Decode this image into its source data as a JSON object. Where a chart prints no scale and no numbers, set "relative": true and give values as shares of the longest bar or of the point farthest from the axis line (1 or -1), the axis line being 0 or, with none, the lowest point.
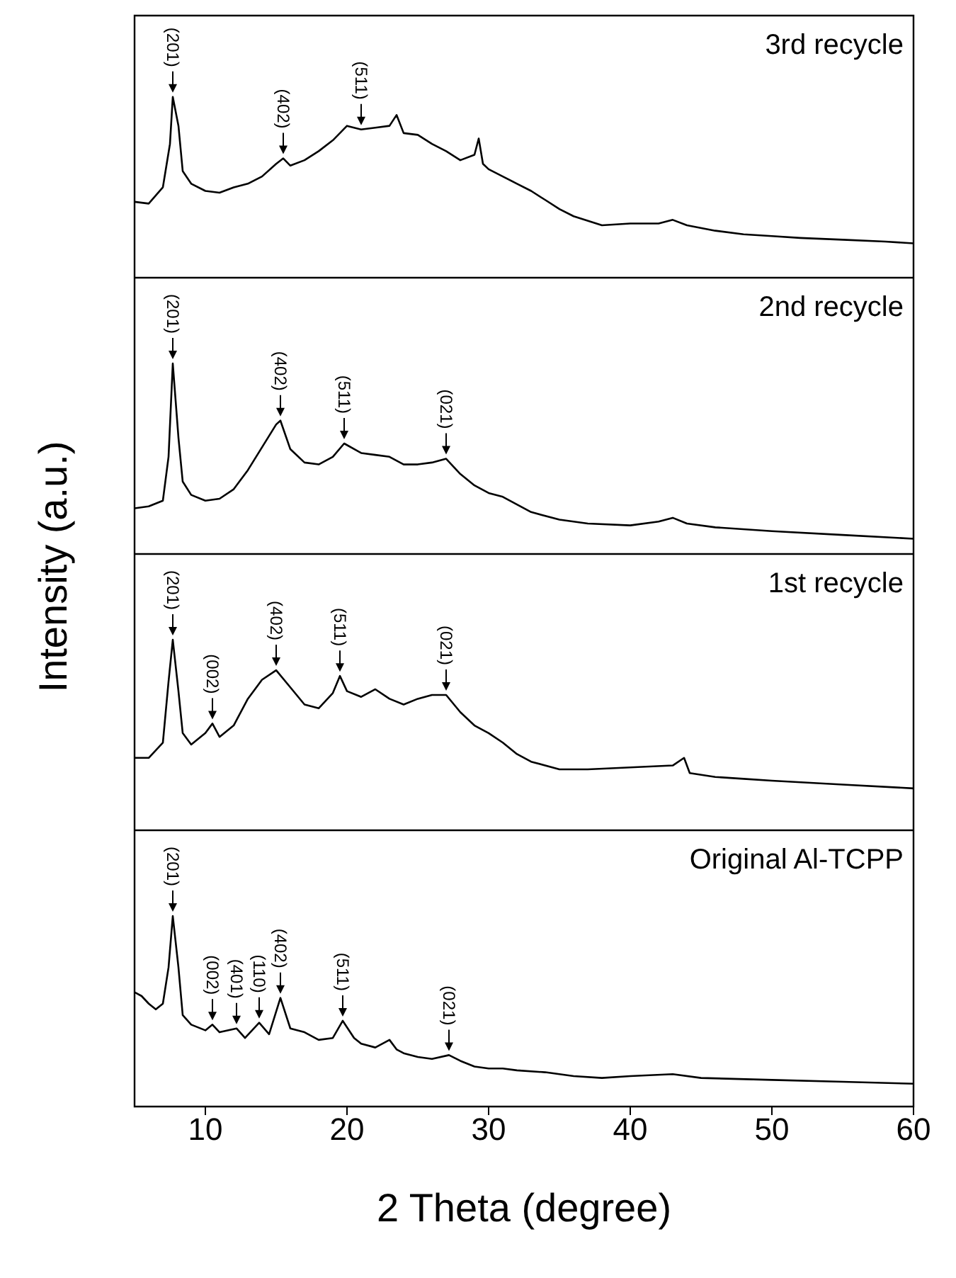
{
  "chart_data": [
    {
      "type": "line",
      "title": "3rd recycle",
      "relative": true,
      "color": "#000000",
      "xlim": [
        5,
        60
      ],
      "xticks": [
        10,
        20,
        30,
        40,
        50,
        60
      ],
      "tick_labels": false,
      "ylabel": "Intensity (a.u.)",
      "x": [
        5,
        6,
        7,
        7.5,
        7.7,
        8.1,
        8.4,
        9,
        10,
        11,
        12,
        13,
        14,
        15,
        15.5,
        16,
        17,
        18,
        19,
        20,
        21,
        22,
        23,
        23.5,
        24,
        25,
        26,
        27,
        28,
        29,
        29.3,
        29.6,
        30,
        31,
        32,
        33,
        34,
        35,
        36,
        38,
        40,
        42,
        43,
        44,
        46,
        48,
        50,
        52,
        55,
        58,
        60
      ],
      "values": [
        0.42,
        0.41,
        0.5,
        0.74,
        1.0,
        0.84,
        0.59,
        0.52,
        0.48,
        0.47,
        0.5,
        0.52,
        0.56,
        0.63,
        0.66,
        0.62,
        0.65,
        0.7,
        0.76,
        0.84,
        0.82,
        0.83,
        0.84,
        0.9,
        0.8,
        0.79,
        0.74,
        0.7,
        0.65,
        0.68,
        0.77,
        0.63,
        0.6,
        0.56,
        0.52,
        0.48,
        0.43,
        0.38,
        0.34,
        0.29,
        0.3,
        0.3,
        0.32,
        0.29,
        0.26,
        0.24,
        0.23,
        0.22,
        0.21,
        0.2,
        0.19
      ],
      "annotations": [
        {
          "text": "(201)",
          "x": 7.7,
          "y": 1.0
        },
        {
          "text": "(402)",
          "x": 15.5,
          "y": 0.66
        },
        {
          "text": "(511)",
          "x": 21,
          "y": 0.82
        }
      ]
    },
    {
      "type": "line",
      "title": "2nd recycle",
      "relative": true,
      "color": "#000000",
      "xlim": [
        5,
        60
      ],
      "xticks": [
        10,
        20,
        30,
        40,
        50,
        60
      ],
      "tick_labels": false,
      "x": [
        5,
        6,
        7,
        7.4,
        7.7,
        8.1,
        8.4,
        9,
        10,
        11,
        12,
        13,
        14,
        15,
        15.3,
        16,
        17,
        18,
        19,
        19.8,
        21,
        22,
        23,
        24,
        25,
        26,
        27,
        28,
        29,
        30,
        31,
        32,
        33,
        35,
        37,
        40,
        42,
        43,
        44,
        46,
        50,
        55,
        60
      ],
      "values": [
        0.24,
        0.25,
        0.28,
        0.51,
        1.0,
        0.61,
        0.38,
        0.31,
        0.28,
        0.29,
        0.34,
        0.44,
        0.56,
        0.68,
        0.7,
        0.55,
        0.48,
        0.47,
        0.51,
        0.58,
        0.53,
        0.52,
        0.51,
        0.47,
        0.47,
        0.48,
        0.5,
        0.42,
        0.36,
        0.32,
        0.3,
        0.26,
        0.22,
        0.18,
        0.16,
        0.15,
        0.17,
        0.19,
        0.16,
        0.14,
        0.12,
        0.1,
        0.08
      ],
      "annotations": [
        {
          "text": "(201)",
          "x": 7.7,
          "y": 1.0
        },
        {
          "text": "(402)",
          "x": 15.3,
          "y": 0.7
        },
        {
          "text": "(511)",
          "x": 19.8,
          "y": 0.58
        },
        {
          "text": "(021)",
          "x": 27,
          "y": 0.5
        }
      ]
    },
    {
      "type": "line",
      "title": "1st recycle",
      "relative": true,
      "color": "#000000",
      "xlim": [
        5,
        60
      ],
      "xticks": [
        10,
        20,
        30,
        40,
        50,
        60
      ],
      "tick_labels": false,
      "x": [
        5,
        6,
        7,
        7.4,
        7.7,
        8.1,
        8.4,
        9,
        10,
        10.5,
        11,
        12,
        13,
        14,
        15,
        16,
        17,
        18,
        19,
        19.5,
        20,
        21,
        22,
        23,
        24,
        25,
        26,
        27,
        28,
        29,
        30,
        31,
        32,
        33,
        35,
        37,
        40,
        43,
        43.8,
        44.2,
        46,
        48,
        50,
        55,
        60
      ],
      "values": [
        0.38,
        0.38,
        0.46,
        0.78,
        1.0,
        0.73,
        0.51,
        0.45,
        0.51,
        0.56,
        0.49,
        0.55,
        0.69,
        0.79,
        0.84,
        0.75,
        0.66,
        0.64,
        0.72,
        0.81,
        0.73,
        0.7,
        0.74,
        0.69,
        0.66,
        0.69,
        0.71,
        0.71,
        0.62,
        0.55,
        0.51,
        0.46,
        0.4,
        0.36,
        0.32,
        0.32,
        0.33,
        0.34,
        0.38,
        0.3,
        0.28,
        0.27,
        0.26,
        0.24,
        0.22
      ],
      "annotations": [
        {
          "text": "(201)",
          "x": 7.7,
          "y": 1.0
        },
        {
          "text": "(002)",
          "x": 10.5,
          "y": 0.56
        },
        {
          "text": "(402)",
          "x": 15,
          "y": 0.84
        },
        {
          "text": "(511)",
          "x": 19.5,
          "y": 0.81
        },
        {
          "text": "(021)",
          "x": 27,
          "y": 0.71
        }
      ]
    },
    {
      "type": "line",
      "title": "Original Al-TCPP",
      "relative": true,
      "color": "#000000",
      "xlim": [
        5,
        60
      ],
      "xticks": [
        10,
        20,
        30,
        40,
        50,
        60
      ],
      "tick_labels": "x",
      "xlabel": "2 Theta (degree)",
      "x": [
        5,
        5.5,
        6,
        6.5,
        7,
        7.4,
        7.7,
        8.1,
        8.4,
        9,
        10,
        10.5,
        11,
        12.2,
        12.8,
        13.8,
        14.5,
        15.3,
        16,
        17,
        18,
        19,
        19.7,
        20.5,
        21,
        22,
        23,
        23.5,
        24,
        25,
        26,
        27.2,
        28,
        29,
        30,
        31,
        32,
        34,
        36,
        38,
        40,
        43,
        45,
        50,
        55,
        60
      ],
      "values": [
        0.6,
        0.58,
        0.54,
        0.51,
        0.54,
        0.73,
        1.0,
        0.73,
        0.48,
        0.43,
        0.4,
        0.43,
        0.39,
        0.41,
        0.36,
        0.44,
        0.38,
        0.57,
        0.41,
        0.39,
        0.35,
        0.36,
        0.45,
        0.36,
        0.33,
        0.31,
        0.35,
        0.3,
        0.28,
        0.26,
        0.25,
        0.27,
        0.24,
        0.21,
        0.2,
        0.2,
        0.19,
        0.18,
        0.16,
        0.15,
        0.16,
        0.17,
        0.15,
        0.14,
        0.13,
        0.12
      ],
      "annotations": [
        {
          "text": "(201)",
          "x": 7.7,
          "y": 1.0
        },
        {
          "text": "(002)",
          "x": 10.5,
          "y": 0.43
        },
        {
          "text": "(401)",
          "x": 12.2,
          "y": 0.41
        },
        {
          "text": "(110)",
          "x": 13.8,
          "y": 0.44
        },
        {
          "text": "(402)",
          "x": 15.3,
          "y": 0.57
        },
        {
          "text": "(511)",
          "x": 19.7,
          "y": 0.45
        },
        {
          "text": "(021)",
          "x": 27.2,
          "y": 0.27
        }
      ]
    }
  ]
}
